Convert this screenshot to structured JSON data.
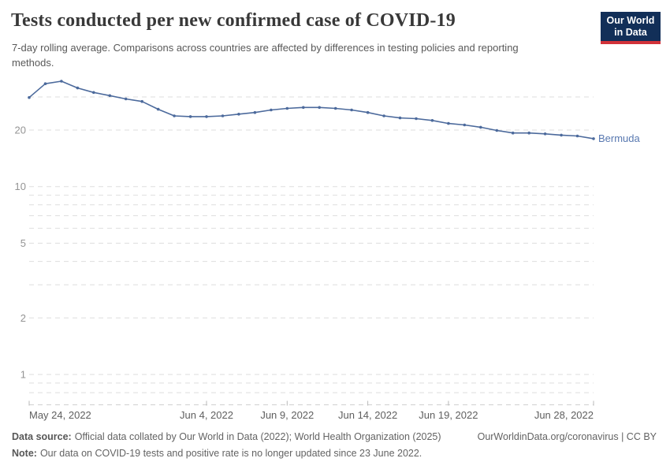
{
  "header": {
    "title": "Tests conducted per new confirmed case of COVID-19",
    "subtitle": "7-day rolling average. Comparisons across countries are affected by differences in testing policies and reporting methods.",
    "logo": {
      "line1": "Our World",
      "line2": "in Data",
      "bg_color": "#122f58",
      "accent_color": "#d13239"
    }
  },
  "chart_data": {
    "type": "line",
    "title": "Tests conducted per new confirmed case of COVID-19",
    "subtitle": "7-day rolling average. Comparisons across countries are affected by differences in testing policies and reporting methods.",
    "grid": true,
    "legend_position": "end-of-line-label",
    "y_axis": {
      "scale": "log",
      "labeled_ticks": [
        20,
        10,
        5,
        2,
        1
      ],
      "unlabeled_gridlines": [
        30,
        9,
        8,
        7,
        6,
        4,
        3,
        0.9,
        0.8
      ],
      "range": [
        0.7,
        38
      ]
    },
    "x_axis": {
      "ticks": [
        {
          "label": "May 24, 2022",
          "index": 0,
          "align": "start"
        },
        {
          "label": "Jun 4, 2022",
          "index": 11,
          "align": "middle"
        },
        {
          "label": "Jun 9, 2022",
          "index": 16,
          "align": "middle"
        },
        {
          "label": "Jun 14, 2022",
          "index": 21,
          "align": "middle"
        },
        {
          "label": "Jun 19, 2022",
          "index": 26,
          "align": "middle"
        },
        {
          "label": "Jun 28, 2022",
          "index": 35,
          "align": "end"
        }
      ]
    },
    "series": [
      {
        "name": "Bermuda",
        "color": "#4c6a9c",
        "label_color": "#5878b0",
        "dates": [
          "2022-05-24",
          "2022-05-25",
          "2022-05-26",
          "2022-05-27",
          "2022-05-28",
          "2022-05-29",
          "2022-05-30",
          "2022-05-31",
          "2022-06-01",
          "2022-06-02",
          "2022-06-03",
          "2022-06-04",
          "2022-06-05",
          "2022-06-06",
          "2022-06-07",
          "2022-06-08",
          "2022-06-09",
          "2022-06-10",
          "2022-06-11",
          "2022-06-12",
          "2022-06-13",
          "2022-06-14",
          "2022-06-15",
          "2022-06-16",
          "2022-06-17",
          "2022-06-18",
          "2022-06-19",
          "2022-06-20",
          "2022-06-21",
          "2022-06-22",
          "2022-06-23",
          "2022-06-24",
          "2022-06-25",
          "2022-06-26",
          "2022-06-27",
          "2022-06-28"
        ],
        "values": [
          29.8,
          35.3,
          36.4,
          33.5,
          31.7,
          30.5,
          29.3,
          28.4,
          25.8,
          23.8,
          23.6,
          23.6,
          23.8,
          24.3,
          24.8,
          25.6,
          26.1,
          26.4,
          26.4,
          26.1,
          25.6,
          24.8,
          23.8,
          23.2,
          23.0,
          22.5,
          21.7,
          21.3,
          20.7,
          19.9,
          19.3,
          19.3,
          19.1,
          18.8,
          18.6,
          18.0
        ]
      }
    ]
  },
  "footer": {
    "data_source_label": "Data source:",
    "data_source_text": "Official data collated by Our World in Data (2022); World Health Organization (2025)",
    "attribution": "OurWorldinData.org/coronavirus | CC BY",
    "note_label": "Note:",
    "note_text": "Our data on COVID-19 tests and positive rate is no longer updated since 23 June 2022."
  }
}
